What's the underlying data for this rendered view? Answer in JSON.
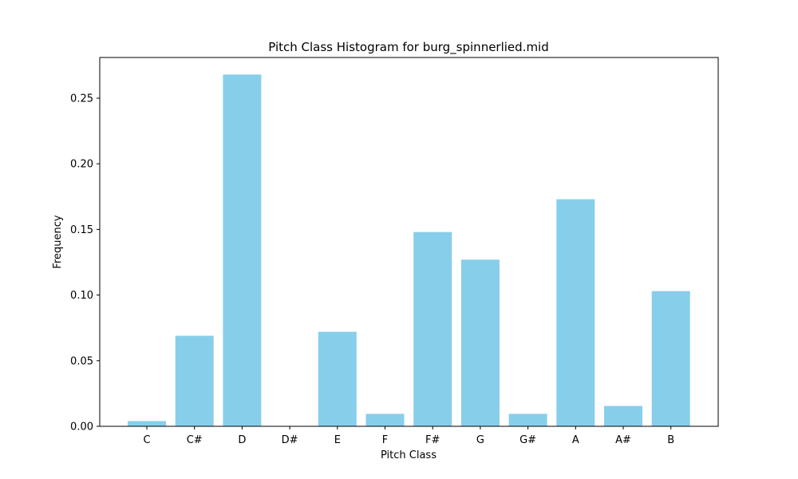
{
  "chart_data": {
    "type": "bar",
    "title": "Pitch Class Histogram for burg_spinnerlied.mid",
    "xlabel": "Pitch Class",
    "ylabel": "Frequency",
    "categories": [
      "C",
      "C#",
      "D",
      "D#",
      "E",
      "F",
      "F#",
      "G",
      "G#",
      "A",
      "A#",
      "B"
    ],
    "values": [
      0.004,
      0.069,
      0.268,
      0.0,
      0.072,
      0.0095,
      0.148,
      0.127,
      0.0095,
      0.173,
      0.0155,
      0.103
    ],
    "ylim": [
      0,
      0.281
    ],
    "yticks": [
      0.0,
      0.05,
      0.1,
      0.15,
      0.2,
      0.25
    ],
    "ytick_labels": [
      "0.00",
      "0.05",
      "0.10",
      "0.15",
      "0.20",
      "0.25"
    ],
    "bar_color": "#87CEEB",
    "grid": false
  }
}
